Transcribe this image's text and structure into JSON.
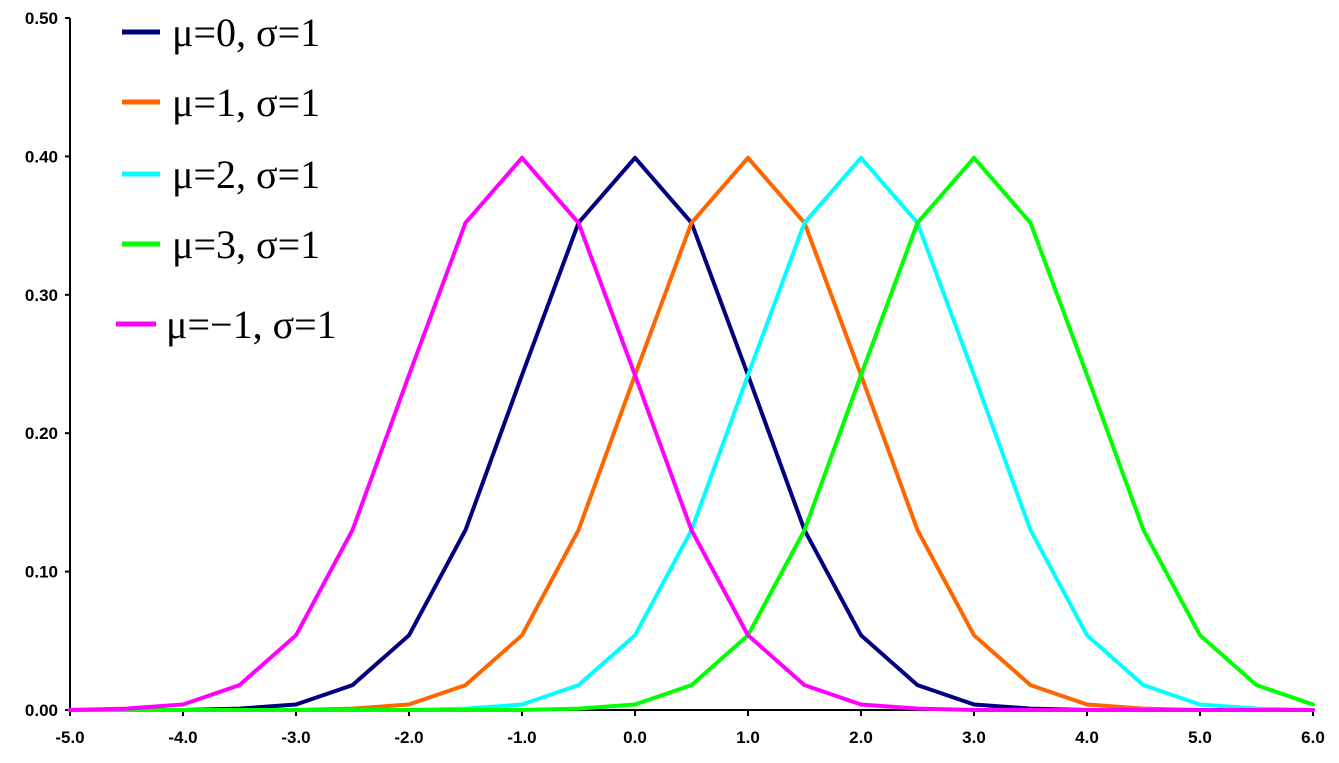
{
  "chart_data": {
    "type": "line",
    "title": "",
    "xlabel": "",
    "ylabel": "",
    "xlim": [
      -5.0,
      6.0
    ],
    "ylim": [
      0.0,
      0.5
    ],
    "x_ticks": [
      "-5.0",
      "-4.0",
      "-3.0",
      "-2.0",
      "-1.0",
      "0.0",
      "1.0",
      "2.0",
      "3.0",
      "4.0",
      "5.0",
      "6.0"
    ],
    "y_ticks": [
      "0.00",
      "0.10",
      "0.20",
      "0.30",
      "0.40",
      "0.50"
    ],
    "grid": false,
    "legend_position": "top-left",
    "x": [
      -5.0,
      -4.5,
      -4.0,
      -3.5,
      -3.0,
      -2.5,
      -2.0,
      -1.5,
      -1.0,
      -0.5,
      0.0,
      0.5,
      1.0,
      1.5,
      2.0,
      2.5,
      3.0,
      3.5,
      4.0,
      4.5,
      5.0,
      5.5,
      6.0
    ],
    "series": [
      {
        "name": "μ=0, σ=1",
        "color": "#000080",
        "values": [
          0.0,
          0.0,
          0.0,
          0.001,
          0.004,
          0.018,
          0.054,
          0.13,
          0.242,
          0.352,
          0.399,
          0.352,
          0.242,
          0.13,
          0.054,
          0.018,
          0.004,
          0.001,
          0.0,
          0.0,
          0.0,
          0.0,
          0.0
        ]
      },
      {
        "name": "μ=1, σ=1",
        "color": "#FF6600",
        "values": [
          0.0,
          0.0,
          0.0,
          0.0,
          0.0,
          0.001,
          0.004,
          0.018,
          0.054,
          0.13,
          0.242,
          0.352,
          0.399,
          0.352,
          0.242,
          0.13,
          0.054,
          0.018,
          0.004,
          0.001,
          0.0,
          0.0,
          0.0
        ]
      },
      {
        "name": "μ=2, σ=1",
        "color": "#00FFFF",
        "values": [
          0.0,
          0.0,
          0.0,
          0.0,
          0.0,
          0.0,
          0.0,
          0.001,
          0.004,
          0.018,
          0.054,
          0.13,
          0.242,
          0.352,
          0.399,
          0.352,
          0.242,
          0.13,
          0.054,
          0.018,
          0.004,
          0.001,
          0.0
        ]
      },
      {
        "name": "μ=3, σ=1",
        "color": "#00FF00",
        "values": [
          0.0,
          0.0,
          0.0,
          0.0,
          0.0,
          0.0,
          0.0,
          0.0,
          0.0,
          0.001,
          0.004,
          0.018,
          0.054,
          0.13,
          0.242,
          0.352,
          0.399,
          0.352,
          0.242,
          0.13,
          0.054,
          0.018,
          0.004
        ]
      },
      {
        "name": "μ=−1, σ=1",
        "color": "#FF00FF",
        "values": [
          0.0,
          0.001,
          0.004,
          0.018,
          0.054,
          0.13,
          0.242,
          0.352,
          0.399,
          0.352,
          0.242,
          0.13,
          0.054,
          0.018,
          0.004,
          0.001,
          0.0,
          0.0,
          0.0,
          0.0,
          0.0,
          0.0,
          0.0
        ]
      }
    ]
  }
}
